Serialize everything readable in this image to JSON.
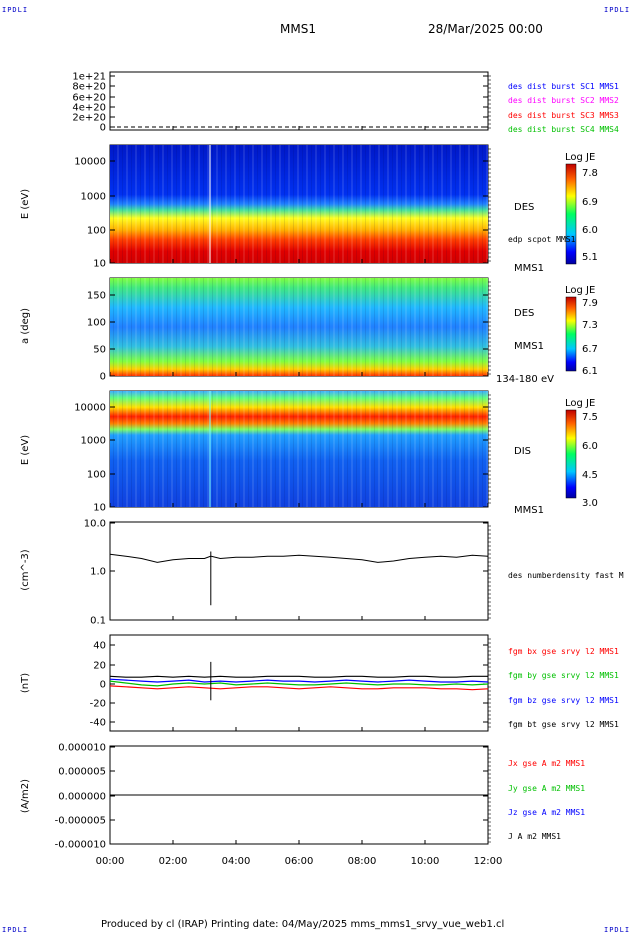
{
  "header": {
    "corner_label": "IPDLI",
    "mission": "MMS1",
    "datetime": "28/Mar/2025 00:00"
  },
  "footer": {
    "text": "Produced by cl (IRAP)   Printing date: 04/May/2025   mms_mms1_srvy_vue_web1.cl"
  },
  "time_axis": {
    "ticks": [
      "00:00",
      "02:00",
      "04:00",
      "06:00",
      "08:00",
      "10:00",
      "12:00"
    ],
    "range_hours": [
      0,
      12
    ]
  },
  "colors": {
    "mms1": "#0000ff",
    "mms2": "#ff00ff",
    "mms3": "#ff0000",
    "mms4": "#00c000",
    "bx": "#ff0000",
    "by": "#00c000",
    "bz": "#0000ff",
    "bt": "#000000"
  },
  "chart_data": [
    {
      "type": "line",
      "id": "des_dist_burst",
      "yticks": [
        "1e+21",
        "8e+20",
        "6e+20",
        "4e+20",
        "2e+20",
        "0"
      ],
      "ylim": [
        0,
        1e+21
      ],
      "series": [
        {
          "name": "des dist burst SC1 MMS1",
          "color": "#0000ff",
          "values": [
            0,
            0
          ]
        },
        {
          "name": "des dist burst SC2 MMS2",
          "color": "#ff00ff",
          "values": [
            0,
            0
          ]
        },
        {
          "name": "des dist burst SC3 MMS3",
          "color": "#ff0000",
          "values": [
            0,
            0
          ]
        },
        {
          "name": "des dist burst SC4 MMS4",
          "color": "#00c000",
          "values": [
            0,
            0
          ]
        }
      ]
    },
    {
      "type": "heatmap",
      "id": "des_energy",
      "ylabel": "E (eV)",
      "yticks": [
        "10000",
        "1000",
        "100",
        "10"
      ],
      "scale": "log",
      "right_labels": [
        "DES",
        "MMS1"
      ],
      "overlay_label": "edp scpot MMS1",
      "colorbar": {
        "title": "Log JE",
        "ticks": [
          "7.8",
          "6.9",
          "6.0",
          "5.1"
        ]
      }
    },
    {
      "type": "heatmap",
      "id": "des_pitch",
      "ylabel": "a (deg)",
      "yticks": [
        "150",
        "100",
        "50",
        "0"
      ],
      "ylim": [
        0,
        180
      ],
      "right_labels": [
        "DES",
        "MMS1",
        "134-180 eV"
      ],
      "colorbar": {
        "title": "Log JE",
        "ticks": [
          "7.9",
          "7.3",
          "6.7",
          "6.1"
        ]
      }
    },
    {
      "type": "heatmap",
      "id": "dis_energy",
      "ylabel": "E (eV)",
      "yticks": [
        "10000",
        "1000",
        "100",
        "10"
      ],
      "scale": "log",
      "right_labels": [
        "DIS",
        "MMS1"
      ],
      "colorbar": {
        "title": "Log JE",
        "ticks": [
          "7.5",
          "6.0",
          "4.5",
          "3.0"
        ]
      }
    },
    {
      "type": "line",
      "id": "density",
      "ylabel": "(cm^-3)",
      "yticks": [
        "10.0",
        "1.0",
        "0.1"
      ],
      "scale": "log",
      "ylim": [
        0.1,
        10
      ],
      "series": [
        {
          "name": "des numberdensity fast M",
          "color": "#000000",
          "x": [
            0,
            0.5,
            1,
            1.5,
            2,
            2.5,
            3,
            3.2,
            3.5,
            4,
            4.5,
            5,
            5.5,
            6,
            6.5,
            7,
            7.5,
            8,
            8.5,
            9,
            9.5,
            10,
            10.5,
            11,
            11.5,
            12
          ],
          "values": [
            2.2,
            2.0,
            1.8,
            1.5,
            1.7,
            1.8,
            1.8,
            2.0,
            1.8,
            1.9,
            1.9,
            2.0,
            2.0,
            2.1,
            2.0,
            1.9,
            1.8,
            1.7,
            1.5,
            1.6,
            1.8,
            1.9,
            2.0,
            1.9,
            2.1,
            2.0
          ]
        }
      ]
    },
    {
      "type": "line",
      "id": "fgm",
      "ylabel": "(nT)",
      "yticks": [
        "40",
        "20",
        "0",
        "-20",
        "-40"
      ],
      "ylim": [
        -50,
        50
      ],
      "series": [
        {
          "name": "fgm bx gse srvy l2 MMS1",
          "color": "#ff0000",
          "values": [
            -3,
            -4,
            -5,
            -6,
            -5,
            -4,
            -5,
            -6,
            -5,
            -4,
            -4,
            -5,
            -6,
            -5,
            -4,
            -5,
            -6,
            -6,
            -5,
            -5,
            -5,
            -6,
            -6,
            -7,
            -6
          ]
        },
        {
          "name": "fgm by gse srvy l2 MMS1",
          "color": "#00c000",
          "values": [
            2,
            0,
            -2,
            -3,
            -1,
            0,
            -1,
            0,
            -2,
            -1,
            0,
            -1,
            -2,
            -2,
            -1,
            0,
            -1,
            -2,
            -1,
            -1,
            -2,
            -2,
            -1,
            -2,
            -1
          ]
        },
        {
          "name": "fgm bz gse srvy l2 MMS1",
          "color": "#0000ff",
          "values": [
            4,
            3,
            2,
            1,
            2,
            3,
            1,
            2,
            1,
            2,
            3,
            2,
            2,
            1,
            2,
            3,
            2,
            1,
            2,
            3,
            2,
            1,
            1,
            2,
            1
          ]
        },
        {
          "name": "fgm bt gse srvy l2 MMS1",
          "color": "#000000",
          "values": [
            7,
            6,
            6,
            7,
            6,
            7,
            6,
            7,
            6,
            6,
            7,
            7,
            7,
            6,
            6,
            7,
            7,
            6,
            6,
            7,
            7,
            6,
            6,
            7,
            7
          ]
        }
      ]
    },
    {
      "type": "line",
      "id": "current",
      "ylabel": "(A/m2)",
      "yticks": [
        "0.000010",
        "0.000005",
        "0.000000",
        "-0.000005",
        "-0.000010"
      ],
      "ylim": [
        -1e-05,
        1e-05
      ],
      "series": [
        {
          "name": "Jx gse A m2 MMS1",
          "color": "#ff0000",
          "values": [
            0,
            0
          ]
        },
        {
          "name": "Jy gse A m2 MMS1",
          "color": "#00c000",
          "values": [
            0,
            0
          ]
        },
        {
          "name": "Jz gse A m2 MMS1",
          "color": "#0000ff",
          "values": [
            0,
            0
          ]
        },
        {
          "name": "J A m2 MMS1",
          "color": "#000000",
          "values": [
            0,
            0
          ]
        }
      ]
    }
  ]
}
